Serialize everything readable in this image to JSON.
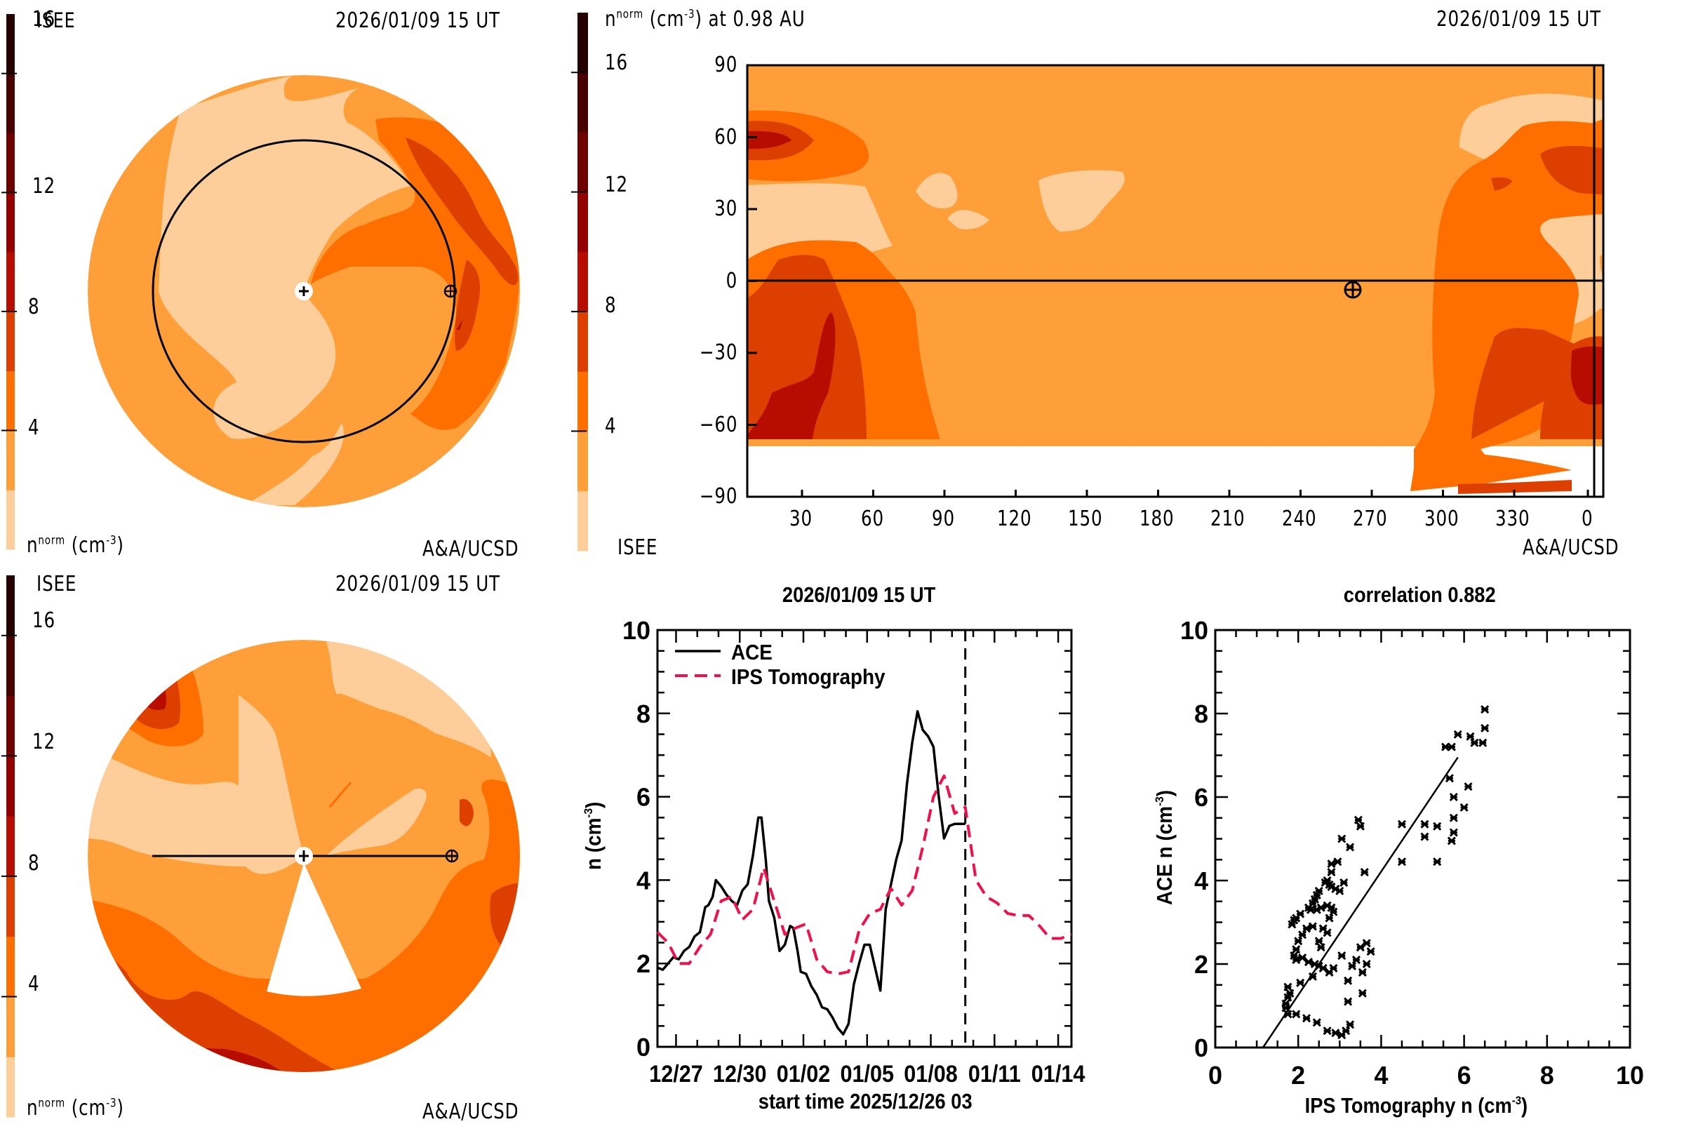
{
  "colorscale": {
    "label_main": "n",
    "label_sup": "norm",
    "label_unit": "(cm",
    "label_unit_sup": "-3",
    "label_close": ")",
    "ticks": [
      "16",
      "12",
      "8",
      "4"
    ],
    "levels": [
      {
        "min": 0,
        "max": 2,
        "color": "#FECE9A"
      },
      {
        "min": 2,
        "max": 4,
        "color": "#FE9F3A"
      },
      {
        "min": 4,
        "max": 6,
        "color": "#FE6F00"
      },
      {
        "min": 6,
        "max": 8,
        "color": "#DD3F00"
      },
      {
        "min": 8,
        "max": 10,
        "color": "#B70D00"
      },
      {
        "min": 10,
        "max": 12,
        "color": "#920000"
      },
      {
        "min": 12,
        "max": 14,
        "color": "#6E0000"
      },
      {
        "min": 14,
        "max": 16,
        "color": "#480000"
      },
      {
        "min": 16,
        "max": 18,
        "color": "#250000"
      }
    ]
  },
  "panels": {
    "ecliptic": {
      "source": "ISEE",
      "timestamp": "2026/01/09 15 UT",
      "credit": "A&A/UCSD",
      "sun_marker": "+",
      "earth_marker": "⊕"
    },
    "synoptic": {
      "title_prefix": "n",
      "title_sup": "norm",
      "title_mid": "(cm",
      "title_mid_sup": "-3",
      "title_suffix": ") at 0.98 AU",
      "timestamp": "2026/01/09 15 UT",
      "source": "ISEE",
      "credit": "A&A/UCSD",
      "lat_ticks": [
        "90",
        "60",
        "30",
        "0",
        "−30",
        "−60",
        "−90"
      ],
      "lon_ticks": [
        "30",
        "60",
        "90",
        "120",
        "150",
        "180",
        "210",
        "240",
        "270",
        "300",
        "330",
        "0"
      ]
    },
    "meridional": {
      "source": "ISEE",
      "timestamp": "2026/01/09 15 UT",
      "credit": "A&A/UCSD"
    }
  },
  "chart_data": [
    {
      "type": "line",
      "title": "2026/01/09 15 UT",
      "xlabel": "start time 2025/12/26 03",
      "ylabel": "n (cm⁻³)",
      "ylim": [
        0,
        10
      ],
      "xlim_days": [
        0,
        19.5
      ],
      "x_tick_labels": [
        "12/27",
        "12/30",
        "01/02",
        "01/05",
        "01/08",
        "01/11",
        "01/14"
      ],
      "x_tick_days": [
        0.875,
        3.875,
        6.875,
        9.875,
        12.875,
        15.875,
        18.875
      ],
      "y_tick_labels": [
        "0",
        "2",
        "4",
        "6",
        "8",
        "10"
      ],
      "current_time_day": 14.5,
      "legend": [
        {
          "name": "ACE",
          "style": "solid",
          "color": "#000000"
        },
        {
          "name": "IPS Tomography",
          "style": "dashed",
          "color": "#F0104A"
        }
      ],
      "series": [
        {
          "name": "ACE",
          "x": [
            0.0,
            0.25,
            0.5,
            0.75,
            1.0,
            1.25,
            1.5,
            1.75,
            2.0,
            2.25,
            2.4,
            2.6,
            2.75,
            3.0,
            3.25,
            3.5,
            3.75,
            4.0,
            4.25,
            4.5,
            4.75,
            4.9,
            5.1,
            5.25,
            5.5,
            5.75,
            6.0,
            6.25,
            6.4,
            6.6,
            6.75,
            7.0,
            7.25,
            7.5,
            7.75,
            8.0,
            8.25,
            8.5,
            8.75,
            9.0,
            9.25,
            9.5,
            9.75,
            10.0,
            10.25,
            10.5,
            10.75,
            11.0,
            11.25,
            11.5,
            11.75,
            12.0,
            12.25,
            12.5,
            12.75,
            13.0,
            13.25,
            13.5,
            13.75,
            14.0,
            14.25,
            14.5
          ],
          "y": [
            1.9,
            1.85,
            2.0,
            2.15,
            2.1,
            2.3,
            2.4,
            2.65,
            2.75,
            3.35,
            3.4,
            3.6,
            4.0,
            3.85,
            3.65,
            3.5,
            3.4,
            3.75,
            3.9,
            4.6,
            5.5,
            5.5,
            4.5,
            3.5,
            3.1,
            2.3,
            2.45,
            2.9,
            2.85,
            2.3,
            1.8,
            1.75,
            1.45,
            1.25,
            0.95,
            0.9,
            0.7,
            0.45,
            0.3,
            0.55,
            1.5,
            2.0,
            2.45,
            2.45,
            1.9,
            1.35,
            3.3,
            3.9,
            4.5,
            4.95,
            6.3,
            7.3,
            8.05,
            7.6,
            7.45,
            7.2,
            6.0,
            5.0,
            5.3,
            5.35,
            5.35,
            5.35
          ]
        },
        {
          "name": "IPS Tomography",
          "x": [
            0.0,
            0.5,
            1.0,
            1.5,
            2.0,
            2.5,
            3.0,
            3.5,
            4.0,
            4.5,
            5.0,
            5.5,
            6.0,
            6.5,
            7.0,
            7.5,
            8.0,
            8.5,
            9.0,
            9.5,
            10.0,
            10.5,
            11.0,
            11.5,
            12.0,
            12.5,
            13.0,
            13.5,
            14.0,
            14.5,
            15.0,
            15.5,
            16.0,
            16.5,
            17.0,
            17.5,
            18.0,
            18.5,
            19.0,
            19.5
          ],
          "y": [
            2.75,
            2.5,
            2.0,
            2.0,
            2.4,
            2.7,
            3.5,
            3.6,
            3.05,
            3.3,
            4.3,
            3.5,
            2.7,
            2.85,
            2.95,
            2.1,
            1.8,
            1.75,
            1.8,
            2.8,
            3.2,
            3.3,
            3.8,
            3.4,
            3.75,
            4.8,
            6.0,
            6.5,
            5.6,
            5.75,
            4.0,
            3.6,
            3.45,
            3.2,
            3.15,
            3.15,
            2.9,
            2.6,
            2.6,
            2.7
          ]
        }
      ]
    },
    {
      "type": "scatter",
      "title": "correlation 0.882",
      "xlabel": "IPS Tomography n (cm⁻³)",
      "ylabel": "ACE n (cm⁻³)",
      "xlim": [
        0,
        10
      ],
      "ylim": [
        0,
        10
      ],
      "x_tick_labels": [
        "0",
        "2",
        "4",
        "6",
        "8",
        "10"
      ],
      "y_tick_labels": [
        "0",
        "2",
        "4",
        "6",
        "8",
        "10"
      ],
      "correlation": 0.882,
      "fit_line": {
        "x": [
          1.15,
          5.85
        ],
        "y": [
          0.0,
          6.95
        ]
      },
      "points": [
        [
          6.5,
          8.1
        ],
        [
          6.5,
          7.65
        ],
        [
          6.45,
          7.3
        ],
        [
          6.25,
          7.3
        ],
        [
          6.15,
          7.45
        ],
        [
          5.85,
          7.5
        ],
        [
          5.7,
          7.2
        ],
        [
          5.55,
          7.2
        ],
        [
          6.1,
          6.25
        ],
        [
          5.65,
          6.45
        ],
        [
          5.75,
          6.0
        ],
        [
          6.0,
          5.75
        ],
        [
          5.75,
          5.5
        ],
        [
          5.75,
          5.15
        ],
        [
          5.7,
          4.95
        ],
        [
          5.35,
          5.3
        ],
        [
          5.05,
          5.35
        ],
        [
          5.05,
          5.05
        ],
        [
          5.35,
          4.45
        ],
        [
          4.5,
          5.35
        ],
        [
          4.5,
          4.45
        ],
        [
          3.45,
          5.45
        ],
        [
          3.5,
          5.3
        ],
        [
          3.05,
          5.0
        ],
        [
          3.25,
          4.8
        ],
        [
          2.95,
          4.45
        ],
        [
          2.8,
          4.4
        ],
        [
          2.8,
          4.2
        ],
        [
          3.6,
          4.2
        ],
        [
          3.1,
          3.95
        ],
        [
          2.65,
          3.95
        ],
        [
          2.7,
          4.0
        ],
        [
          2.75,
          3.9
        ],
        [
          2.8,
          3.85
        ],
        [
          2.9,
          3.8
        ],
        [
          3.0,
          3.75
        ],
        [
          2.5,
          3.75
        ],
        [
          2.45,
          3.65
        ],
        [
          2.4,
          3.55
        ],
        [
          2.35,
          3.45
        ],
        [
          2.25,
          3.35
        ],
        [
          2.3,
          3.3
        ],
        [
          2.45,
          3.3
        ],
        [
          2.55,
          3.35
        ],
        [
          2.7,
          3.4
        ],
        [
          2.8,
          3.35
        ],
        [
          2.85,
          3.25
        ],
        [
          2.75,
          3.1
        ],
        [
          2.05,
          3.2
        ],
        [
          1.95,
          3.1
        ],
        [
          1.9,
          3.05
        ],
        [
          1.85,
          2.95
        ],
        [
          2.6,
          2.85
        ],
        [
          2.7,
          2.75
        ],
        [
          2.35,
          2.9
        ],
        [
          2.2,
          2.85
        ],
        [
          2.1,
          2.7
        ],
        [
          2.0,
          2.55
        ],
        [
          2.5,
          2.55
        ],
        [
          2.55,
          2.4
        ],
        [
          1.95,
          2.35
        ],
        [
          1.9,
          2.2
        ],
        [
          1.95,
          2.1
        ],
        [
          2.1,
          2.15
        ],
        [
          2.25,
          2.05
        ],
        [
          2.4,
          2.0
        ],
        [
          2.5,
          1.95
        ],
        [
          2.6,
          1.9
        ],
        [
          2.75,
          1.8
        ],
        [
          2.85,
          1.9
        ],
        [
          3.05,
          2.2
        ],
        [
          3.5,
          2.4
        ],
        [
          3.65,
          2.5
        ],
        [
          3.75,
          2.3
        ],
        [
          3.3,
          1.95
        ],
        [
          3.4,
          2.1
        ],
        [
          3.55,
          1.8
        ],
        [
          3.65,
          2.0
        ],
        [
          3.2,
          1.6
        ],
        [
          3.2,
          1.1
        ],
        [
          3.55,
          1.3
        ],
        [
          2.35,
          1.7
        ],
        [
          2.05,
          1.55
        ],
        [
          1.75,
          1.45
        ],
        [
          1.8,
          1.3
        ],
        [
          1.75,
          1.2
        ],
        [
          1.7,
          1.05
        ],
        [
          1.7,
          0.95
        ],
        [
          1.75,
          0.8
        ],
        [
          1.95,
          0.8
        ],
        [
          2.2,
          0.7
        ],
        [
          2.45,
          0.6
        ],
        [
          2.7,
          0.4
        ],
        [
          2.9,
          0.35
        ],
        [
          3.05,
          0.3
        ],
        [
          3.15,
          0.4
        ],
        [
          3.25,
          0.55
        ]
      ]
    }
  ]
}
